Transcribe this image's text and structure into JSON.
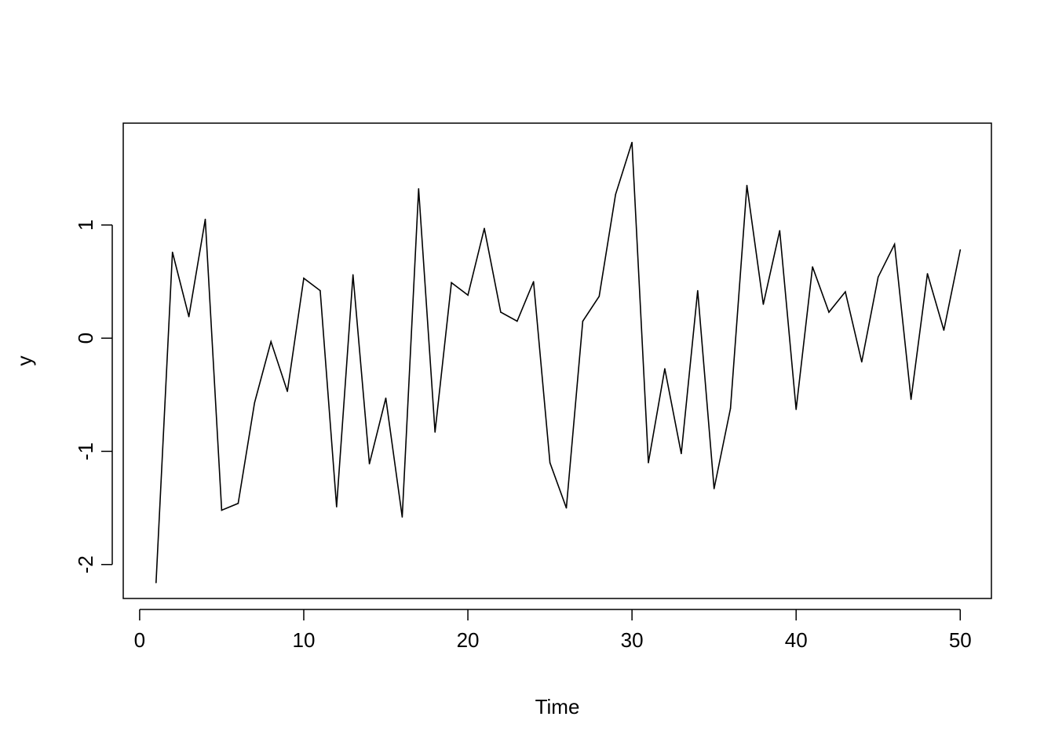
{
  "chart_data": {
    "type": "line",
    "title": "",
    "xlabel": "Time",
    "ylabel": "y",
    "xlim": [
      -1,
      51.9
    ],
    "ylim": [
      -2.3,
      1.9
    ],
    "x_ticks": [
      0,
      10,
      20,
      30,
      40,
      50
    ],
    "y_ticks": [
      -2,
      -1,
      0,
      1
    ],
    "x_tick_labels": [
      "0",
      "10",
      "20",
      "30",
      "40",
      "50"
    ],
    "y_tick_labels": [
      "-2",
      "-1",
      "0",
      "1"
    ],
    "grid": false,
    "legend": "none",
    "line_color": "#000000",
    "series": [
      {
        "x": [
          1,
          2,
          3,
          4,
          5,
          6,
          7,
          8,
          9,
          10,
          11,
          12,
          13,
          14,
          15,
          16,
          17,
          18,
          19,
          20,
          21,
          22,
          23,
          24,
          25,
          26,
          27,
          28,
          29,
          30,
          31,
          32,
          33,
          34,
          35,
          36,
          37,
          38,
          39,
          40,
          41,
          42,
          43,
          44,
          45,
          46,
          47,
          48,
          49,
          50
        ],
        "values": [
          -2.16,
          0.76,
          0.19,
          1.05,
          -1.52,
          -1.46,
          -0.57,
          -0.03,
          -0.47,
          0.53,
          0.42,
          -1.49,
          0.56,
          -1.11,
          -0.53,
          -1.58,
          1.32,
          -0.83,
          0.49,
          0.38,
          0.97,
          0.23,
          0.15,
          0.5,
          -1.1,
          -1.5,
          0.15,
          0.37,
          1.27,
          1.73,
          -1.1,
          -0.27,
          -1.02,
          0.42,
          -1.33,
          -0.62,
          1.35,
          0.3,
          0.95,
          -0.63,
          0.63,
          0.23,
          0.41,
          -0.21,
          0.54,
          0.83,
          -0.54,
          0.57,
          0.07,
          0.78
        ]
      }
    ]
  }
}
